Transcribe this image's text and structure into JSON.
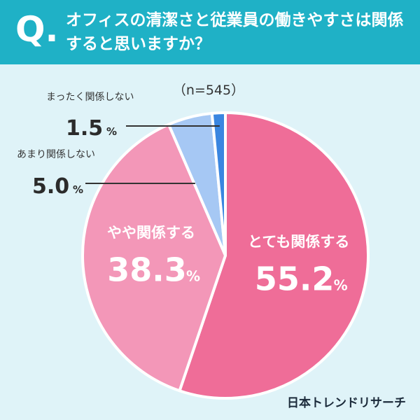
{
  "header": {
    "q_mark": "Q.",
    "question": "オフィスの清潔さと従業員の働きやすさは関係すると思いますか？"
  },
  "footer": {
    "logo": "日本トレンドリサーチ"
  },
  "chart_data": {
    "type": "pie",
    "title": "オフィスの清潔さと従業員の働きやすさは関係すると思いますか？",
    "sample_size": "（n=545）",
    "unit": "%",
    "slices": [
      {
        "name": "とても関係する",
        "value": 55.2,
        "color": "#ef6d98",
        "label_inside": true
      },
      {
        "name": "やや関係する",
        "value": 38.3,
        "color": "#f397b8",
        "label_inside": true
      },
      {
        "name": "あまり関係しない",
        "value": 5.0,
        "color": "#a6c8f4",
        "label_inside": false
      },
      {
        "name": "まったく関係しない",
        "value": 1.5,
        "color": "#3a86e0",
        "label_inside": false
      }
    ],
    "start_angle_deg": 0,
    "direction": "clockwise"
  }
}
